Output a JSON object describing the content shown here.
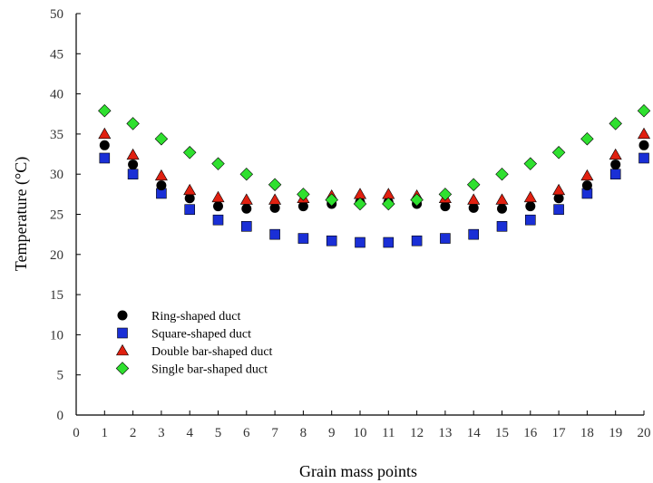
{
  "chart_data": {
    "type": "scatter",
    "title": "",
    "xlabel": "Grain mass points",
    "ylabel": "Temperature (°C)",
    "xlim": [
      0,
      20
    ],
    "ylim": [
      0,
      50
    ],
    "xticks": [
      "0",
      "1",
      "2",
      "3",
      "4",
      "5",
      "6",
      "7",
      "8",
      "9",
      "10",
      "11",
      "12",
      "13",
      "14",
      "15",
      "16",
      "17",
      "18",
      "19",
      "20"
    ],
    "yticks": [
      "0",
      "5",
      "10",
      "15",
      "20",
      "25",
      "30",
      "35",
      "40",
      "45",
      "50"
    ],
    "grid": false,
    "legend_position": "bottom-left",
    "x": [
      1,
      2,
      3,
      4,
      5,
      6,
      7,
      8,
      9,
      10,
      11,
      12,
      13,
      14,
      15,
      16,
      17,
      18,
      19,
      20
    ],
    "series": [
      {
        "name": "Ring-shaped duct",
        "marker": "circle",
        "color": "#000000",
        "values": [
          33.6,
          31.2,
          28.6,
          27.0,
          26.0,
          25.7,
          25.8,
          26.0,
          26.3,
          26.5,
          26.5,
          26.3,
          26.0,
          25.8,
          25.7,
          26.0,
          27.0,
          28.6,
          31.2,
          33.6
        ]
      },
      {
        "name": "Square-shaped duct",
        "marker": "square",
        "color": "#1a2fd6",
        "values": [
          32.0,
          30.0,
          27.6,
          25.6,
          24.3,
          23.5,
          22.5,
          22.0,
          21.7,
          21.5,
          21.5,
          21.7,
          22.0,
          22.5,
          23.5,
          24.3,
          25.6,
          27.6,
          30.0,
          32.0
        ]
      },
      {
        "name": "Double bar-shaped duct",
        "marker": "triangle",
        "color": "#e02010",
        "values": [
          35.0,
          32.4,
          29.8,
          28.0,
          27.1,
          26.8,
          26.8,
          27.0,
          27.3,
          27.5,
          27.5,
          27.3,
          27.0,
          26.8,
          26.8,
          27.1,
          28.0,
          29.8,
          32.4,
          35.0
        ]
      },
      {
        "name": "Single bar-shaped duct",
        "marker": "diamond",
        "color": "#2fe02f",
        "values": [
          37.9,
          36.3,
          34.4,
          32.7,
          31.3,
          30.0,
          28.7,
          27.5,
          26.8,
          26.3,
          26.3,
          26.8,
          27.5,
          28.7,
          30.0,
          31.3,
          32.7,
          34.4,
          36.3,
          37.9
        ]
      }
    ]
  }
}
